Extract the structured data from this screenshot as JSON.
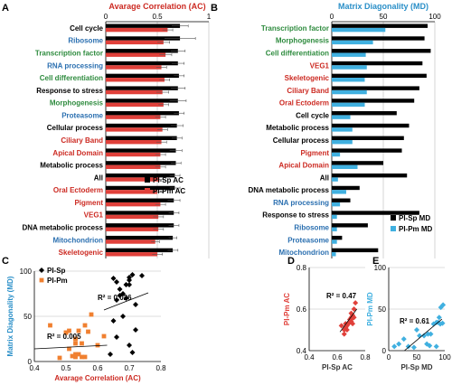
{
  "colors": {
    "black": "#000000",
    "red": "#e0403a",
    "blue": "#40b0e0",
    "orange": "#f08030",
    "green": "#2e8b3e",
    "blue_label": "#2a6fb0",
    "red_label": "#cc2a22",
    "title_red": "#cc2a22",
    "title_blue": "#2a8fc8"
  },
  "chart_data": [
    {
      "panel": "A",
      "type": "bar",
      "orientation": "horizontal",
      "title": "Avarage Correlation (AC)",
      "xlim": [
        0,
        1
      ],
      "xticks": [
        "0",
        "0.5",
        "1"
      ],
      "xtick_values": [
        0,
        0.5,
        1
      ],
      "categories": [
        {
          "label": "Cell cycle",
          "color": "black"
        },
        {
          "label": "Ribosome",
          "color": "blue_label"
        },
        {
          "label": "Transcription factor",
          "color": "green"
        },
        {
          "label": "RNA processing",
          "color": "blue_label"
        },
        {
          "label": "Cell differentiation",
          "color": "green"
        },
        {
          "label": "Response to stress",
          "color": "black"
        },
        {
          "label": "Morphogenesis",
          "color": "green"
        },
        {
          "label": "Proteasome",
          "color": "blue_label"
        },
        {
          "label": "Cellular process",
          "color": "black"
        },
        {
          "label": "Ciliary Band",
          "color": "red_label"
        },
        {
          "label": "Apical Domain",
          "color": "red_label"
        },
        {
          "label": "Metabolic process",
          "color": "black"
        },
        {
          "label": "All",
          "color": "black"
        },
        {
          "label": "Oral Ectoderm",
          "color": "red_label"
        },
        {
          "label": "Pigment",
          "color": "red_label"
        },
        {
          "label": "VEG1",
          "color": "red_label"
        },
        {
          "label": "DNA metabolic process",
          "color": "black"
        },
        {
          "label": "Mitochondrion",
          "color": "blue_label"
        },
        {
          "label": "Skeletogenic",
          "color": "red_label"
        }
      ],
      "series": [
        {
          "name": "PI-Sp AC",
          "color": "black",
          "values": [
            0.72,
            0.72,
            0.7,
            0.7,
            0.71,
            0.7,
            0.7,
            0.71,
            0.69,
            0.69,
            0.68,
            0.68,
            0.67,
            0.67,
            0.66,
            0.66,
            0.66,
            0.65,
            0.65
          ],
          "errors": [
            0.08,
            0.15,
            0.07,
            0.06,
            0.05,
            0.07,
            0.08,
            0.05,
            0.06,
            0.05,
            0.06,
            0.05,
            0.05,
            0.05,
            0.06,
            0.05,
            0.05,
            0.04,
            0.05
          ]
        },
        {
          "name": "PI-Pm AC",
          "color": "red",
          "values": [
            0.6,
            0.56,
            0.58,
            0.54,
            0.57,
            0.55,
            0.56,
            0.53,
            0.55,
            0.54,
            0.53,
            0.53,
            0.52,
            0.5,
            0.53,
            0.51,
            0.51,
            0.48,
            0.5
          ],
          "errors": [
            0.05,
            0.06,
            0.06,
            0.05,
            0.05,
            0.06,
            0.05,
            0.05,
            0.05,
            0.05,
            0.05,
            0.05,
            0.04,
            0.05,
            0.05,
            0.05,
            0.05,
            0.04,
            0.05
          ]
        }
      ],
      "legend_position": "bottom-right"
    },
    {
      "panel": "B",
      "type": "bar",
      "orientation": "horizontal",
      "title": "Matrix Diagonality (MD)",
      "xlim": [
        0,
        100
      ],
      "xticks": [
        "0",
        "50",
        "100"
      ],
      "xtick_values": [
        0,
        50,
        100
      ],
      "categories": [
        {
          "label": "Transcription factor",
          "color": "green"
        },
        {
          "label": "Morphogenesis",
          "color": "green"
        },
        {
          "label": "Cell differentiation",
          "color": "green"
        },
        {
          "label": "VEG1",
          "color": "red_label"
        },
        {
          "label": "Skeletogenic",
          "color": "red_label"
        },
        {
          "label": "Ciliary Band",
          "color": "red_label"
        },
        {
          "label": "Oral Ectoderm",
          "color": "red_label"
        },
        {
          "label": "Cell cycle",
          "color": "black"
        },
        {
          "label": "Metabolic process",
          "color": "black"
        },
        {
          "label": "Cellular process",
          "color": "black"
        },
        {
          "label": "Pigment",
          "color": "red_label"
        },
        {
          "label": "Apical Domain",
          "color": "red_label"
        },
        {
          "label": "All",
          "color": "black"
        },
        {
          "label": "DNA metabolic process",
          "color": "black"
        },
        {
          "label": "RNA processing",
          "color": "blue_label"
        },
        {
          "label": "Response to stress",
          "color": "black"
        },
        {
          "label": "Ribosome",
          "color": "blue_label"
        },
        {
          "label": "Proteasome",
          "color": "blue_label"
        },
        {
          "label": "Mitochondrion",
          "color": "blue_label"
        }
      ],
      "series": [
        {
          "name": "PI-Sp MD",
          "color": "black",
          "values": [
            93,
            90,
            96,
            88,
            92,
            85,
            80,
            63,
            75,
            70,
            68,
            50,
            73,
            27,
            18,
            85,
            35,
            10,
            45
          ]
        },
        {
          "name": "PI-Pm MD",
          "color": "blue",
          "values": [
            52,
            40,
            33,
            34,
            32,
            34,
            32,
            18,
            20,
            20,
            8,
            25,
            6,
            14,
            8,
            5,
            5,
            5,
            4
          ]
        }
      ],
      "legend_position": "bottom-right"
    },
    {
      "panel": "C",
      "type": "scatter",
      "xlabel": "Avarage Correlation (AC)",
      "ylabel": "Matrix Diagonality (MD)",
      "xlim": [
        0.4,
        0.8
      ],
      "ylim": [
        0,
        100
      ],
      "xticks": [
        "0.4",
        "0.5",
        "0.6",
        "0.7",
        "0.8"
      ],
      "xtick_values": [
        0.4,
        0.5,
        0.6,
        0.7,
        0.8
      ],
      "yticks": [
        "0",
        "50",
        "100"
      ],
      "ytick_values": [
        0,
        50,
        100
      ],
      "series": [
        {
          "name": "PI-Sp",
          "marker": "diamond",
          "color": "black",
          "x": [
            0.72,
            0.72,
            0.7,
            0.7,
            0.71,
            0.7,
            0.7,
            0.71,
            0.69,
            0.69,
            0.68,
            0.68,
            0.67,
            0.67,
            0.66,
            0.66,
            0.66,
            0.65,
            0.65,
            0.74,
            0.64
          ],
          "y": [
            63,
            35,
            93,
            18,
            96,
            85,
            90,
            10,
            70,
            85,
            50,
            75,
            73,
            80,
            68,
            88,
            27,
            45,
            92,
            95,
            8
          ],
          "fit": {
            "x": [
              0.62,
              0.76
            ],
            "y": [
              57,
              76
            ]
          },
          "r2_label": "R² = 0.026"
        },
        {
          "name": "PI-Pm",
          "marker": "square",
          "color": "orange",
          "x": [
            0.6,
            0.56,
            0.58,
            0.54,
            0.57,
            0.55,
            0.56,
            0.53,
            0.55,
            0.54,
            0.53,
            0.53,
            0.52,
            0.5,
            0.53,
            0.51,
            0.51,
            0.48,
            0.5,
            0.45,
            0.62
          ],
          "y": [
            18,
            5,
            52,
            8,
            33,
            5,
            40,
            5,
            20,
            34,
            25,
            20,
            6,
            32,
            8,
            34,
            14,
            4,
            32,
            40,
            28
          ],
          "fit": {
            "x": [
              0.4,
              0.63
            ],
            "y": [
              14,
              18
            ]
          },
          "r2_label": "R² = 0.005"
        }
      ]
    },
    {
      "panel": "D",
      "type": "scatter",
      "xlabel": "PI-Sp AC",
      "ylabel": "PI-Pm AC",
      "xlim": [
        0.4,
        0.8
      ],
      "ylim": [
        0.4,
        0.8
      ],
      "xticks": [
        "0.4",
        "0.6",
        "0.8"
      ],
      "xtick_values": [
        0.4,
        0.6,
        0.8
      ],
      "yticks": [
        "0.4",
        "0.6",
        "0.8"
      ],
      "ytick_values": [
        0.4,
        0.6,
        0.8
      ],
      "series": [
        {
          "name": "",
          "marker": "diamond",
          "color": "red",
          "x": [
            0.72,
            0.72,
            0.7,
            0.7,
            0.71,
            0.7,
            0.7,
            0.71,
            0.69,
            0.69,
            0.68,
            0.68,
            0.67,
            0.67,
            0.66,
            0.66,
            0.66,
            0.65,
            0.65,
            0.63,
            0.73
          ],
          "y": [
            0.6,
            0.56,
            0.58,
            0.54,
            0.57,
            0.55,
            0.56,
            0.53,
            0.55,
            0.54,
            0.53,
            0.53,
            0.52,
            0.5,
            0.53,
            0.51,
            0.51,
            0.48,
            0.5,
            0.52,
            0.63
          ],
          "fit": {
            "x": [
              0.62,
              0.74
            ],
            "y": [
              0.49,
              0.6
            ]
          },
          "r2_label": "R² = 0.47"
        }
      ]
    },
    {
      "panel": "E",
      "type": "scatter",
      "xlabel": "PI-Sp MD",
      "ylabel": "PI-Pm MD",
      "xlim": [
        0,
        100
      ],
      "ylim": [
        0,
        100
      ],
      "xticks": [
        "0",
        "50",
        "100"
      ],
      "xtick_values": [
        0,
        50,
        100
      ],
      "yticks": [
        "0",
        "50",
        "100"
      ],
      "ytick_values": [
        0,
        50,
        100
      ],
      "series": [
        {
          "name": "",
          "marker": "diamond",
          "color": "blue",
          "x": [
            93,
            90,
            96,
            88,
            92,
            85,
            80,
            63,
            75,
            70,
            68,
            50,
            73,
            27,
            18,
            85,
            35,
            10,
            45,
            97,
            55
          ],
          "y": [
            52,
            40,
            33,
            34,
            32,
            34,
            32,
            18,
            20,
            20,
            8,
            25,
            6,
            14,
            8,
            5,
            5,
            5,
            4,
            55,
            18
          ],
          "fit": {
            "x": [
              28,
              95
            ],
            "y": [
              0,
              38
            ]
          },
          "r2_label": "R² = 0.61"
        }
      ]
    }
  ]
}
